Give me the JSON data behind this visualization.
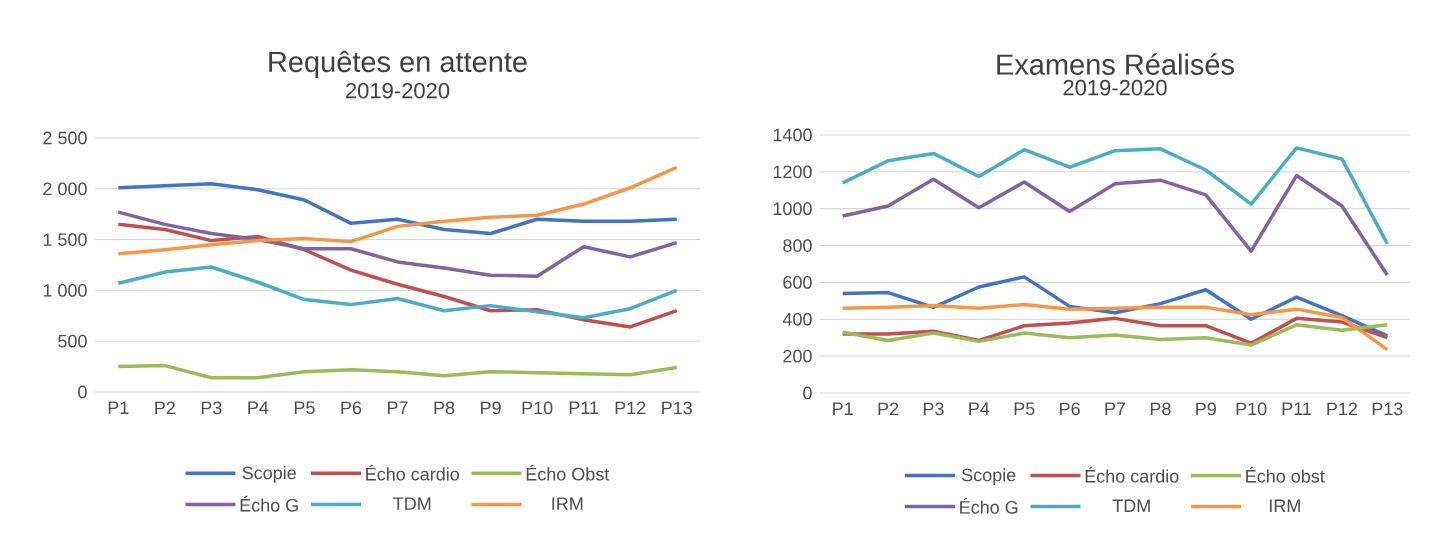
{
  "chart_data": [
    {
      "type": "line",
      "title": "Requêtes en attente",
      "subtitle": "2019-2020",
      "categories": [
        "P1",
        "P2",
        "P3",
        "P4",
        "P5",
        "P6",
        "P7",
        "P8",
        "P9",
        "P10",
        "P11",
        "P12",
        "P13"
      ],
      "series": [
        {
          "name": "Scopie",
          "color": "#4472c4",
          "values": [
            2010,
            2030,
            2050,
            1990,
            1890,
            1660,
            1700,
            1600,
            1560,
            1700,
            1680,
            1680,
            1700
          ]
        },
        {
          "name": "Écho cardio",
          "color": "#c0504d",
          "values": [
            1650,
            1600,
            1490,
            1530,
            1400,
            1200,
            1060,
            940,
            800,
            810,
            710,
            640,
            800
          ]
        },
        {
          "name": "Écho Obst",
          "color": "#9bbb59",
          "values": [
            250,
            260,
            140,
            140,
            200,
            220,
            200,
            160,
            200,
            190,
            180,
            170,
            240
          ]
        },
        {
          "name": "Écho G",
          "color": "#8064a2",
          "values": [
            1770,
            1650,
            1560,
            1500,
            1410,
            1410,
            1280,
            1220,
            1150,
            1140,
            1430,
            1330,
            1470
          ]
        },
        {
          "name": "TDM",
          "color": "#4bacc6",
          "values": [
            1070,
            1180,
            1230,
            1080,
            910,
            860,
            920,
            800,
            850,
            790,
            730,
            820,
            1000
          ]
        },
        {
          "name": "IRM",
          "color": "#f79646",
          "values": [
            1360,
            1400,
            1450,
            1490,
            1510,
            1480,
            1630,
            1680,
            1720,
            1740,
            1850,
            2010,
            2210
          ]
        }
      ],
      "ylim": [
        0,
        2500
      ],
      "yticks": [
        0,
        500,
        {
          "value": 1000,
          "label": "1 000"
        },
        {
          "value": 1500,
          "label": "1 500"
        },
        {
          "value": 2000,
          "label": "2 000"
        },
        {
          "value": 2500,
          "label": "2 500"
        }
      ],
      "grid": "y",
      "legend": "bottom",
      "marker": "none",
      "line_style": "solid"
    },
    {
      "type": "line",
      "title": "Examens Réalisés",
      "subtitle": "2019-2020",
      "categories": [
        "P1",
        "P2",
        "P3",
        "P4",
        "P5",
        "P6",
        "P7",
        "P8",
        "P9",
        "P10",
        "P11",
        "P12",
        "P13"
      ],
      "series": [
        {
          "name": "Scopie",
          "color": "#4472c4",
          "values": [
            540,
            545,
            465,
            575,
            630,
            470,
            435,
            485,
            560,
            400,
            520,
            420,
            310
          ]
        },
        {
          "name": "Écho cardio",
          "color": "#c0504d",
          "values": [
            320,
            320,
            335,
            285,
            365,
            380,
            405,
            365,
            365,
            270,
            405,
            385,
            300
          ]
        },
        {
          "name": "Écho obst",
          "color": "#9bbb59",
          "values": [
            330,
            285,
            325,
            280,
            325,
            300,
            315,
            290,
            300,
            260,
            370,
            340,
            370
          ]
        },
        {
          "name": "Écho G",
          "color": "#8064a2",
          "values": [
            960,
            1015,
            1160,
            1005,
            1145,
            985,
            1135,
            1155,
            1075,
            770,
            1180,
            1015,
            640
          ]
        },
        {
          "name": "TDM",
          "color": "#4bacc6",
          "values": [
            1140,
            1260,
            1300,
            1175,
            1320,
            1225,
            1315,
            1325,
            1210,
            1025,
            1330,
            1270,
            810
          ]
        },
        {
          "name": "IRM",
          "color": "#f79646",
          "values": [
            460,
            465,
            475,
            460,
            480,
            455,
            460,
            465,
            465,
            425,
            455,
            410,
            235
          ]
        }
      ],
      "ylim": [
        0,
        1400
      ],
      "yticks": [
        0,
        200,
        400,
        600,
        800,
        1000,
        1200,
        1400
      ],
      "grid": "y",
      "legend": "bottom",
      "marker": "none",
      "line_style": "solid"
    }
  ]
}
